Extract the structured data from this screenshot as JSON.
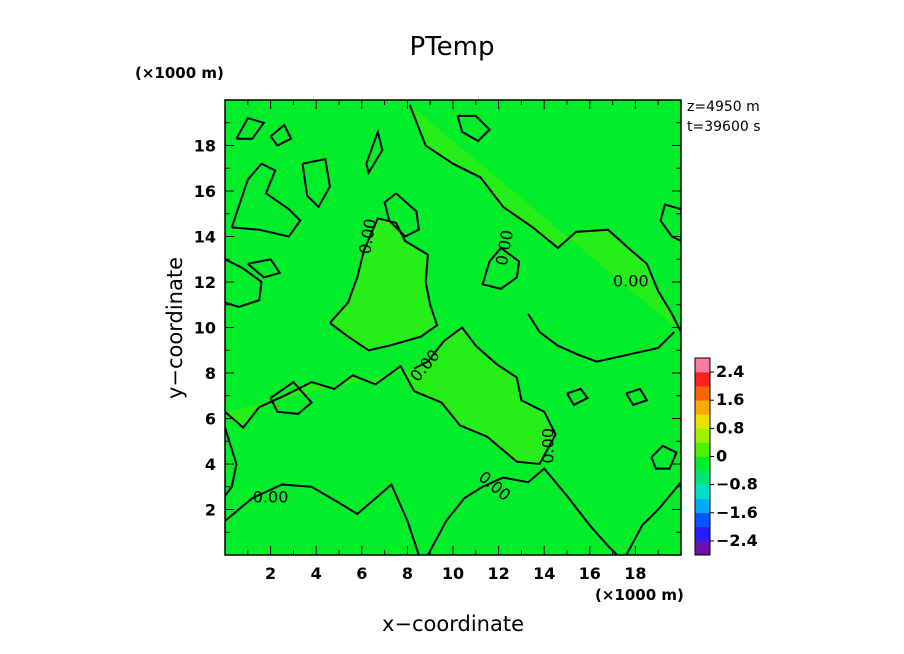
{
  "chart_data": {
    "type": "heatmap",
    "title": "PTemp",
    "xlabel": "x−coordinate",
    "ylabel": "y−coordinate",
    "x_unit": "(×1000 m)",
    "y_unit": "(×1000 m)",
    "xlim": [
      0,
      20
    ],
    "ylim": [
      0,
      20
    ],
    "x_ticks": [
      2,
      4,
      6,
      8,
      10,
      12,
      14,
      16,
      18
    ],
    "y_ticks": [
      2,
      4,
      6,
      8,
      10,
      12,
      14,
      16,
      18
    ],
    "x_tick_labels": [
      "2",
      "4",
      "6",
      "8",
      "10",
      "12",
      "14",
      "16",
      "18"
    ],
    "y_tick_labels": [
      "2",
      "4",
      "6",
      "8",
      "10",
      "12",
      "14",
      "16",
      "18"
    ],
    "annotations": [
      "z=4950 m",
      "t=39600 s"
    ],
    "contour_level": 0.0,
    "contour_labels": [
      {
        "text": "0.00",
        "x": 2.0,
        "y": 2.5,
        "angle": 0
      },
      {
        "text": "0.00",
        "x": 6.3,
        "y": 14.0,
        "angle": -80
      },
      {
        "text": "0.00",
        "x": 8.8,
        "y": 8.3,
        "angle": -50
      },
      {
        "text": "0.00",
        "x": 12.3,
        "y": 13.5,
        "angle": -80
      },
      {
        "text": "0.00",
        "x": 17.8,
        "y": 12.0,
        "angle": 0
      },
      {
        "text": "0.00",
        "x": 14.2,
        "y": 4.8,
        "angle": -90
      },
      {
        "text": "0.00",
        "x": 11.8,
        "y": 3.0,
        "angle": 40
      }
    ],
    "contour_lines": [
      [
        [
          0,
          1.5
        ],
        [
          1.2,
          2.5
        ],
        [
          2.5,
          3.1
        ],
        [
          3.8,
          3.0
        ],
        [
          5,
          2.3
        ],
        [
          5.8,
          1.8
        ],
        [
          6.5,
          2.4
        ],
        [
          7.3,
          3.1
        ],
        [
          8,
          1.5
        ],
        [
          8.5,
          0
        ]
      ],
      [
        [
          8.9,
          0
        ],
        [
          9.7,
          1.5
        ],
        [
          10.5,
          2.5
        ],
        [
          11.3,
          3.0
        ],
        [
          12.2,
          3.4
        ],
        [
          13.3,
          3.2
        ],
        [
          14,
          3.8
        ],
        [
          15,
          2.6
        ],
        [
          16,
          1.3
        ],
        [
          16.8,
          0.4
        ],
        [
          17.2,
          0
        ]
      ],
      [
        [
          17.6,
          0
        ],
        [
          18.3,
          1.3
        ],
        [
          19.0,
          2.0
        ],
        [
          19.5,
          2.6
        ],
        [
          20,
          3.2
        ]
      ],
      [
        [
          0,
          6.3
        ],
        [
          0.8,
          5.6
        ],
        [
          1.5,
          6.5
        ],
        [
          2.6,
          7.0
        ],
        [
          3.8,
          7.6
        ],
        [
          4.8,
          7.3
        ],
        [
          5.6,
          7.9
        ],
        [
          6.6,
          7.5
        ],
        [
          7.7,
          8.3
        ],
        [
          8.3,
          7.2
        ],
        [
          9.5,
          6.7
        ],
        [
          10.3,
          5.7
        ],
        [
          11.5,
          5.2
        ],
        [
          12.8,
          4.1
        ],
        [
          13.8,
          4.0
        ],
        [
          14.5,
          5.3
        ],
        [
          14.0,
          6.3
        ],
        [
          13.0,
          6.8
        ],
        [
          12.8,
          7.8
        ],
        [
          11.9,
          8.4
        ],
        [
          11.0,
          9.2
        ],
        [
          10.4,
          10.0
        ],
        [
          9.6,
          9.4
        ],
        [
          8.9,
          8.5
        ],
        [
          8.3,
          8.2
        ]
      ],
      [
        [
          0,
          13.0
        ],
        [
          0.8,
          12.6
        ],
        [
          1.6,
          12.0
        ],
        [
          1.5,
          11.2
        ],
        [
          0.6,
          10.9
        ],
        [
          0,
          11.1
        ]
      ],
      [
        [
          1.0,
          12.8
        ],
        [
          2.0,
          13.0
        ],
        [
          2.4,
          12.4
        ],
        [
          1.7,
          12.2
        ],
        [
          1.0,
          12.8
        ]
      ],
      [
        [
          4.6,
          10.2
        ],
        [
          5.4,
          11.1
        ],
        [
          5.8,
          12.2
        ],
        [
          6.1,
          13.4
        ],
        [
          6.7,
          14.8
        ],
        [
          7.5,
          14.6
        ],
        [
          7.9,
          13.8
        ],
        [
          8.9,
          13.2
        ],
        [
          8.8,
          12.0
        ],
        [
          9.0,
          11.0
        ],
        [
          9.3,
          10.1
        ],
        [
          8.6,
          9.6
        ],
        [
          7.2,
          9.2
        ],
        [
          6.3,
          9.0
        ],
        [
          5.4,
          9.6
        ],
        [
          4.6,
          10.2
        ]
      ],
      [
        [
          7.5,
          15.9
        ],
        [
          8.4,
          15.1
        ],
        [
          8.5,
          14.3
        ],
        [
          7.9,
          14.0
        ],
        [
          7.2,
          14.7
        ],
        [
          7.0,
          15.5
        ],
        [
          7.5,
          15.9
        ]
      ],
      [
        [
          8.1,
          19.8
        ],
        [
          8.8,
          18.0
        ],
        [
          10.0,
          17.2
        ],
        [
          11.2,
          16.6
        ],
        [
          12.2,
          15.3
        ],
        [
          13.5,
          14.4
        ],
        [
          14.6,
          13.5
        ],
        [
          15.4,
          14.2
        ],
        [
          16.8,
          14.3
        ],
        [
          17.8,
          13.4
        ],
        [
          18.5,
          12.8
        ],
        [
          19.0,
          11.6
        ],
        [
          19.6,
          10.6
        ],
        [
          20,
          9.8
        ]
      ],
      [
        [
          20,
          15.2
        ],
        [
          19.3,
          15.4
        ],
        [
          19.1,
          14.7
        ],
        [
          19.6,
          14.0
        ],
        [
          20,
          13.8
        ]
      ],
      [
        [
          10.2,
          19.3
        ],
        [
          11.0,
          19.3
        ],
        [
          11.6,
          18.7
        ],
        [
          11.1,
          18.2
        ],
        [
          10.4,
          18.6
        ],
        [
          10.2,
          19.3
        ]
      ],
      [
        [
          12.1,
          13.5
        ],
        [
          11.6,
          12.9
        ],
        [
          11.3,
          11.9
        ],
        [
          12.1,
          11.7
        ],
        [
          12.8,
          12.2
        ],
        [
          12.9,
          12.9
        ],
        [
          12.1,
          13.5
        ]
      ],
      [
        [
          13.3,
          10.6
        ],
        [
          13.8,
          9.8
        ],
        [
          14.6,
          9.2
        ],
        [
          15.5,
          8.8
        ],
        [
          16.3,
          8.5
        ],
        [
          17.2,
          8.7
        ],
        [
          18.1,
          8.9
        ],
        [
          19.0,
          9.1
        ],
        [
          19.7,
          9.8
        ]
      ],
      [
        [
          0.5,
          18.3
        ],
        [
          1.0,
          19.2
        ],
        [
          1.7,
          19.0
        ],
        [
          1.2,
          18.3
        ],
        [
          0.5,
          18.3
        ]
      ],
      [
        [
          2.0,
          18.4
        ],
        [
          2.6,
          18.9
        ],
        [
          2.9,
          18.3
        ],
        [
          2.3,
          18.0
        ],
        [
          2.0,
          18.4
        ]
      ],
      [
        [
          0.3,
          14.4
        ],
        [
          1.0,
          16.5
        ],
        [
          1.6,
          17.2
        ],
        [
          2.2,
          16.9
        ],
        [
          1.8,
          15.9
        ],
        [
          2.8,
          15.2
        ],
        [
          3.3,
          14.7
        ],
        [
          2.8,
          14.0
        ],
        [
          1.5,
          14.3
        ],
        [
          0.3,
          14.4
        ]
      ],
      [
        [
          3.4,
          17.2
        ],
        [
          4.4,
          17.4
        ],
        [
          4.6,
          16.2
        ],
        [
          4.1,
          15.3
        ],
        [
          3.6,
          15.8
        ],
        [
          3.4,
          17.2
        ]
      ],
      [
        [
          6.2,
          17.2
        ],
        [
          6.7,
          18.6
        ],
        [
          6.9,
          17.8
        ],
        [
          6.3,
          16.8
        ],
        [
          6.2,
          17.2
        ]
      ],
      [
        [
          0,
          5.6
        ],
        [
          0.5,
          4.0
        ],
        [
          0.3,
          3.0
        ],
        [
          0,
          2.6
        ]
      ],
      [
        [
          2.0,
          6.9
        ],
        [
          3.0,
          7.6
        ],
        [
          3.8,
          6.7
        ],
        [
          3.2,
          6.2
        ],
        [
          2.3,
          6.3
        ],
        [
          2.0,
          6.9
        ]
      ],
      [
        [
          15.0,
          7.1
        ],
        [
          15.6,
          7.3
        ],
        [
          15.9,
          6.9
        ],
        [
          15.3,
          6.6
        ],
        [
          15.0,
          7.1
        ]
      ],
      [
        [
          17.6,
          7.1
        ],
        [
          18.2,
          7.3
        ],
        [
          18.5,
          6.8
        ],
        [
          17.9,
          6.6
        ],
        [
          17.6,
          7.1
        ]
      ],
      [
        [
          18.7,
          4.3
        ],
        [
          19.2,
          4.8
        ],
        [
          19.8,
          4.5
        ],
        [
          19.5,
          3.8
        ],
        [
          18.9,
          3.8
        ],
        [
          18.7,
          4.3
        ]
      ]
    ],
    "colorbar": {
      "ticks": [
        2.4,
        1.6,
        0.8,
        0,
        -0.8,
        -1.6,
        -2.4
      ],
      "tick_labels": [
        "2.4",
        "1.6",
        "0.8",
        "0",
        "−0.8",
        "−1.6",
        "−2.4"
      ],
      "range": [
        -2.8,
        2.8
      ],
      "colors": [
        "#6a0fb0",
        "#2a1aff",
        "#0057ff",
        "#00a9ff",
        "#00e2c8",
        "#00e676",
        "#00ee2a",
        "#4ff000",
        "#9ef200",
        "#e8e400",
        "#ffa800",
        "#ff6000",
        "#ff2020",
        "#ff7b9b"
      ]
    },
    "field_colors": {
      "base": "#00ee2a",
      "warm": "#45ef0a",
      "cool": "#00e468"
    },
    "grid": false
  }
}
